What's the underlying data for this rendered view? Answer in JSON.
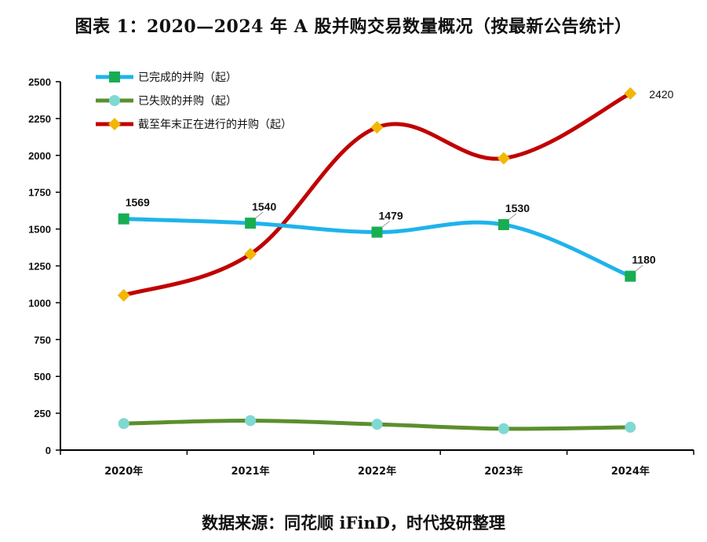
{
  "title": "图表 1：2020—2024 年 A 股并购交易数量概况（按最新公告统计）",
  "source": "数据来源：同花顺 iFinD，时代投研整理",
  "chart_data": {
    "type": "line",
    "categories": [
      "2020年",
      "2021年",
      "2022年",
      "2023年",
      "2024年"
    ],
    "ylim": [
      0,
      2500
    ],
    "yticks": [
      0,
      250,
      500,
      750,
      1000,
      1250,
      1500,
      1750,
      2000,
      2250,
      2500
    ],
    "grid": false,
    "legend_position": "top-left",
    "series": [
      {
        "name": "已完成的并购（起）",
        "values": [
          1569,
          1540,
          1479,
          1530,
          1180
        ],
        "labels": [
          "1569",
          "1540",
          "1479",
          "1530",
          "1180"
        ],
        "line_color": "#1fb3ec",
        "marker": "square",
        "marker_color": "#19ad52"
      },
      {
        "name": "已失败的并购（起）",
        "values": [
          180,
          200,
          175,
          145,
          155
        ],
        "labels": [],
        "line_color": "#5b8f2d",
        "marker": "circle",
        "marker_color": "#7fd9d2"
      },
      {
        "name": "截至年末正在进行的并购（起）",
        "values": [
          1050,
          1330,
          2190,
          1980,
          2420
        ],
        "labels": [
          "",
          "",
          "",
          "",
          "2420"
        ],
        "line_color": "#c00000",
        "marker": "diamond",
        "marker_color": "#f2b705"
      }
    ]
  }
}
